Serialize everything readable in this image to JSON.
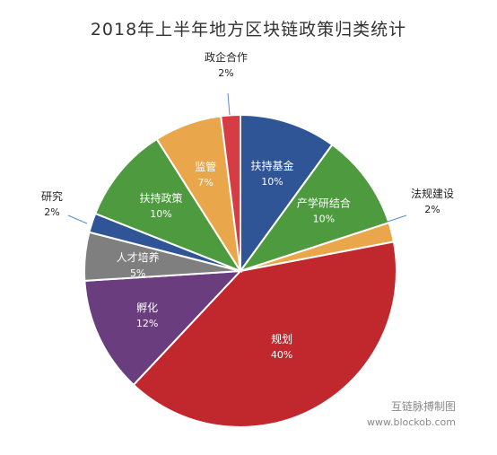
{
  "title": "2018年上半年地方区块链政策归类统计",
  "credit": {
    "line1": "互链脉搏制图",
    "line2": "www.blockob.com"
  },
  "colors": {
    "label_inside": "#ffffff",
    "label_outside": "#222222",
    "leader_line": "#5b8bd0",
    "slice_edge": "#ffffff"
  },
  "chart_data": {
    "type": "pie",
    "title": "2018年上半年地方区块链政策归类统计",
    "unit": "%",
    "slices": [
      {
        "label": "扶持基金",
        "value": 10,
        "pct_label": "10%",
        "color": "#2f5597",
        "label_pos": "inside"
      },
      {
        "label": "产学研结合",
        "value": 10,
        "pct_label": "10%",
        "color": "#4e9a3f",
        "label_pos": "inside"
      },
      {
        "label": "法规建设",
        "value": 2,
        "pct_label": "2%",
        "color": "#e9a64a",
        "label_pos": "outside"
      },
      {
        "label": "规划",
        "value": 40,
        "pct_label": "40%",
        "color": "#c0282e",
        "label_pos": "inside"
      },
      {
        "label": "孵化",
        "value": 12,
        "pct_label": "12%",
        "color": "#6a3d7f",
        "label_pos": "inside"
      },
      {
        "label": "人才培养",
        "value": 5,
        "pct_label": "5%",
        "color": "#7f7f7f",
        "label_pos": "inside"
      },
      {
        "label": "研究",
        "value": 2,
        "pct_label": "2%",
        "color": "#2f5597",
        "label_pos": "outside"
      },
      {
        "label": "扶持政策",
        "value": 10,
        "pct_label": "10%",
        "color": "#4e9a3f",
        "label_pos": "inside"
      },
      {
        "label": "监管",
        "value": 7,
        "pct_label": "7%",
        "color": "#e9a64a",
        "label_pos": "inside"
      },
      {
        "label": "政企合作",
        "value": 2,
        "pct_label": "2%",
        "color": "#d63c44",
        "label_pos": "outside"
      }
    ],
    "start": "12 o'clock",
    "direction": "clockwise",
    "legend": "none"
  }
}
